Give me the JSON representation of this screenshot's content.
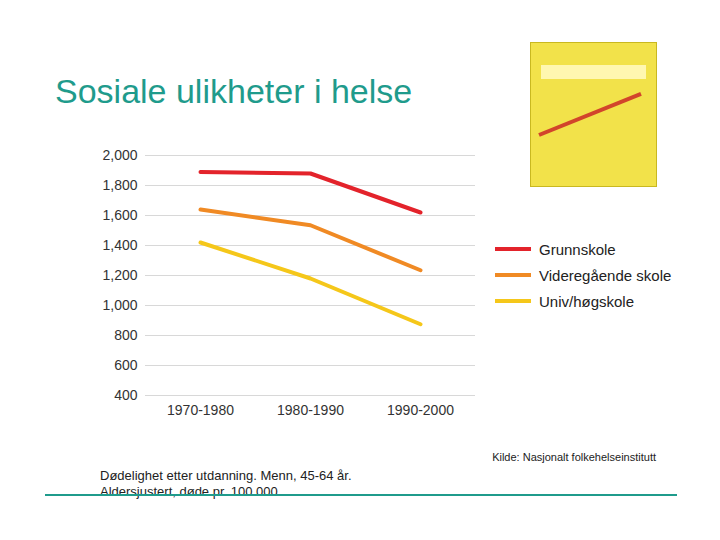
{
  "chart_data": {
    "type": "line",
    "title": "Sosiale ulikheter i helse",
    "categories": [
      "1970-1980",
      "1980-1990",
      "1990-2000"
    ],
    "series": [
      {
        "name": "Grunnskole",
        "color": "#e3232b",
        "values": [
          1890,
          1880,
          1620
        ]
      },
      {
        "name": "Videregående skole",
        "color": "#f08a24",
        "values": [
          1640,
          1535,
          1235
        ]
      },
      {
        "name": "Univ/høgskole",
        "color": "#f5c71a",
        "values": [
          1420,
          1180,
          875
        ]
      }
    ],
    "ylim": [
      400,
      2000
    ],
    "yticks": [
      400,
      600,
      800,
      1000,
      1200,
      1400,
      1600,
      1800,
      2000
    ],
    "grid": true,
    "legend": "right",
    "source": "Kilde: Nasjonalt folkehelseinstitutt",
    "caption": [
      "Dødelighet etter utdanning. Menn, 45-64 år.",
      "Aldersjustert, døde pr. 100.000"
    ]
  }
}
